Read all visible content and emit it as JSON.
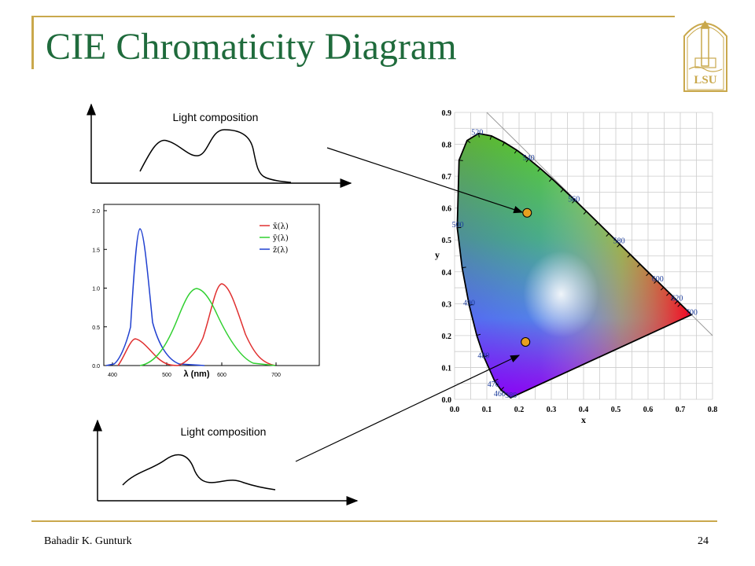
{
  "slide": {
    "title": "CIE Chromaticity Diagram",
    "author": "Bahadir K. Gunturk",
    "page_number": "24",
    "logo_text": "LSU",
    "accent_color": "#c9a84c",
    "title_color": "#1f6b3c"
  },
  "sketches": [
    {
      "label": "Light composition"
    },
    {
      "label": "Light composition"
    }
  ],
  "cmf_plot": {
    "xlabel": "λ (nm)",
    "x_ticks": [
      "400",
      "500",
      "600",
      "700"
    ],
    "y_ticks": [
      "0.0",
      "0.5",
      "1.0",
      "1.5",
      "2.0"
    ],
    "legend": [
      "x̄(λ)",
      "ȳ(λ)",
      "z̄(λ)"
    ],
    "colors": [
      "#e03030",
      "#30d030",
      "#2040d0"
    ]
  },
  "chart_data": {
    "type": "line",
    "xlabel": "x",
    "ylabel": "y",
    "xlim": [
      0.0,
      0.8
    ],
    "ylim": [
      0.0,
      0.9
    ],
    "x_ticks": [
      "0.0",
      "0.1",
      "0.2",
      "0.3",
      "0.4",
      "0.5",
      "0.6",
      "0.7",
      "0.8"
    ],
    "y_ticks": [
      "0.0",
      "0.1",
      "0.2",
      "0.3",
      "0.4",
      "0.5",
      "0.6",
      "0.7",
      "0.8",
      "0.9"
    ],
    "wavelength_labels": [
      {
        "label": "520",
        "x": 0.07,
        "y": 0.83
      },
      {
        "label": "540",
        "x": 0.23,
        "y": 0.75
      },
      {
        "label": "560",
        "x": 0.37,
        "y": 0.62
      },
      {
        "label": "580",
        "x": 0.51,
        "y": 0.49
      },
      {
        "label": "600",
        "x": 0.63,
        "y": 0.37
      },
      {
        "label": "620",
        "x": 0.69,
        "y": 0.31
      },
      {
        "label": "700",
        "x": 0.735,
        "y": 0.265
      },
      {
        "label": "500",
        "x": 0.01,
        "y": 0.54
      },
      {
        "label": "490",
        "x": 0.045,
        "y": 0.295
      },
      {
        "label": "480",
        "x": 0.09,
        "y": 0.13
      },
      {
        "label": "470",
        "x": 0.12,
        "y": 0.04
      },
      {
        "label": "460",
        "x": 0.14,
        "y": 0.01
      },
      {
        "label": "380",
        "x": 0.175,
        "y": 0.005
      }
    ],
    "spectral_locus": [
      [
        0.1741,
        0.005
      ],
      [
        0.144,
        0.0297
      ],
      [
        0.1241,
        0.0578
      ],
      [
        0.0913,
        0.1327
      ],
      [
        0.0687,
        0.2007
      ],
      [
        0.0454,
        0.295
      ],
      [
        0.0235,
        0.4127
      ],
      [
        0.0082,
        0.5384
      ],
      [
        0.0139,
        0.7502
      ],
      [
        0.0389,
        0.812
      ],
      [
        0.0743,
        0.8338
      ],
      [
        0.1142,
        0.8262
      ],
      [
        0.1547,
        0.8059
      ],
      [
        0.1929,
        0.7816
      ],
      [
        0.2296,
        0.7543
      ],
      [
        0.2658,
        0.7243
      ],
      [
        0.3016,
        0.6923
      ],
      [
        0.3373,
        0.6589
      ],
      [
        0.3731,
        0.6245
      ],
      [
        0.4087,
        0.5896
      ],
      [
        0.4441,
        0.5547
      ],
      [
        0.4788,
        0.5202
      ],
      [
        0.5125,
        0.4866
      ],
      [
        0.5448,
        0.4544
      ],
      [
        0.5752,
        0.4242
      ],
      [
        0.6029,
        0.3965
      ],
      [
        0.627,
        0.3725
      ],
      [
        0.6482,
        0.3514
      ],
      [
        0.6658,
        0.334
      ],
      [
        0.6801,
        0.3197
      ],
      [
        0.6915,
        0.3083
      ],
      [
        0.7006,
        0.2993
      ],
      [
        0.7347,
        0.2653
      ]
    ],
    "markers": [
      {
        "x": 0.225,
        "y": 0.585
      },
      {
        "x": 0.22,
        "y": 0.18
      }
    ]
  }
}
